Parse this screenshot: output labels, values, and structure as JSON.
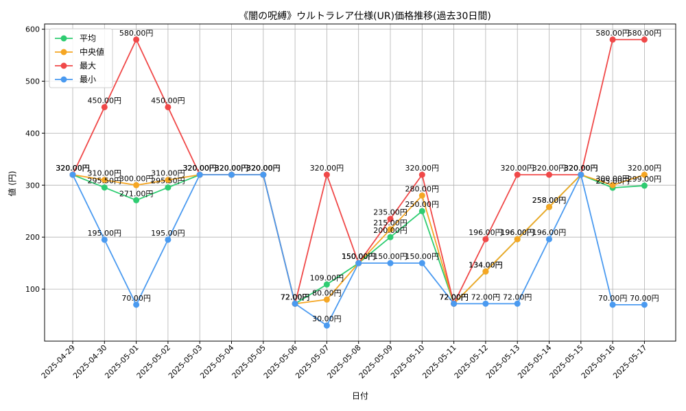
{
  "chart_data": {
    "type": "line",
    "title": "《闇の呪縛》ウルトラレア仕様(UR)価格推移(過去30日間)",
    "xlabel": "日付",
    "ylabel": "値 (円)",
    "ylim": [
      0,
      610
    ],
    "yticks": [
      100,
      200,
      300,
      400,
      500,
      600
    ],
    "grid": true,
    "legend_position": "top-left",
    "label_suffix": "円",
    "categories": [
      "2025-04-29",
      "2025-04-30",
      "2025-05-01",
      "2025-05-02",
      "2025-05-03",
      "2025-05-04",
      "2025-05-05",
      "2025-05-06",
      "2025-05-07",
      "2025-05-08",
      "2025-05-09",
      "2025-05-10",
      "2025-05-11",
      "2025-05-12",
      "2025-05-13",
      "2025-05-14",
      "2025-05-15",
      "2025-05-16",
      "2025-05-17"
    ],
    "series": [
      {
        "name": "平均",
        "color": "#2ecc71",
        "values": [
          320,
          295.5,
          271,
          295.5,
          320,
          320,
          320,
          72,
          109,
          150,
          200,
          250,
          72,
          134,
          196,
          258,
          320,
          295,
          299
        ]
      },
      {
        "name": "中央値",
        "color": "#f5a623",
        "values": [
          320,
          310,
          300,
          310,
          320,
          320,
          320,
          72,
          80,
          150,
          215,
          280,
          72,
          134,
          196,
          258,
          320,
          300,
          320
        ]
      },
      {
        "name": "最大",
        "color": "#f04848",
        "values": [
          320,
          450,
          580,
          450,
          320,
          320,
          320,
          72,
          320,
          150,
          235,
          320,
          72,
          196,
          320,
          320,
          320,
          580,
          580
        ]
      },
      {
        "name": "最小",
        "color": "#4a9af0",
        "values": [
          320,
          195,
          70,
          195,
          320,
          320,
          320,
          72,
          30,
          150,
          150,
          150,
          72,
          72,
          72,
          196,
          320,
          70,
          70
        ]
      }
    ]
  }
}
